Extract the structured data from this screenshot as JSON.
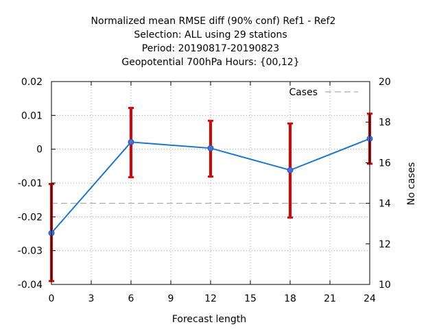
{
  "chart_data": {
    "type": "line",
    "title_lines": [
      "Normalized mean RMSE diff (90% conf) Ref1 - Ref2",
      "Selection: ALL using    29 stations",
      "Period: 20190817-20190823",
      "Geopotential 700hPa   Hours: {00,12}"
    ],
    "xlabel": "Forecast length",
    "ylabel": "",
    "y2label": "No cases",
    "xlim": [
      0,
      24
    ],
    "ylim": [
      -0.04,
      0.02
    ],
    "y2lim": [
      10,
      20
    ],
    "xticks": [
      0,
      3,
      6,
      9,
      12,
      15,
      18,
      21,
      24
    ],
    "yticks": [
      0.02,
      0.01,
      0,
      -0.01,
      -0.02,
      -0.03,
      -0.04
    ],
    "ytick_labels": [
      "0.02",
      "0.01",
      "0",
      "-0.01",
      "-0.02",
      "-0.03",
      "-0.04"
    ],
    "y2ticks": [
      20,
      18,
      16,
      14,
      12,
      10
    ],
    "grid": true,
    "legend_position": "top-right",
    "series": [
      {
        "name": "",
        "color": "#1a75cf",
        "x": [
          0,
          6,
          12,
          18,
          24
        ],
        "y": [
          -0.0248,
          0.0021,
          0.0003,
          -0.0062,
          0.0031
        ],
        "err_low": [
          -0.039,
          -0.0083,
          -0.0081,
          -0.0202,
          -0.0043
        ],
        "err_high": [
          -0.0103,
          0.0122,
          0.0084,
          0.0076,
          0.0105
        ],
        "error_color": "#e00000"
      },
      {
        "name": "Cases",
        "axis": "y2",
        "style": "dashed",
        "color": "#999999",
        "x": [
          0,
          24
        ],
        "y": [
          14,
          14
        ]
      }
    ]
  }
}
